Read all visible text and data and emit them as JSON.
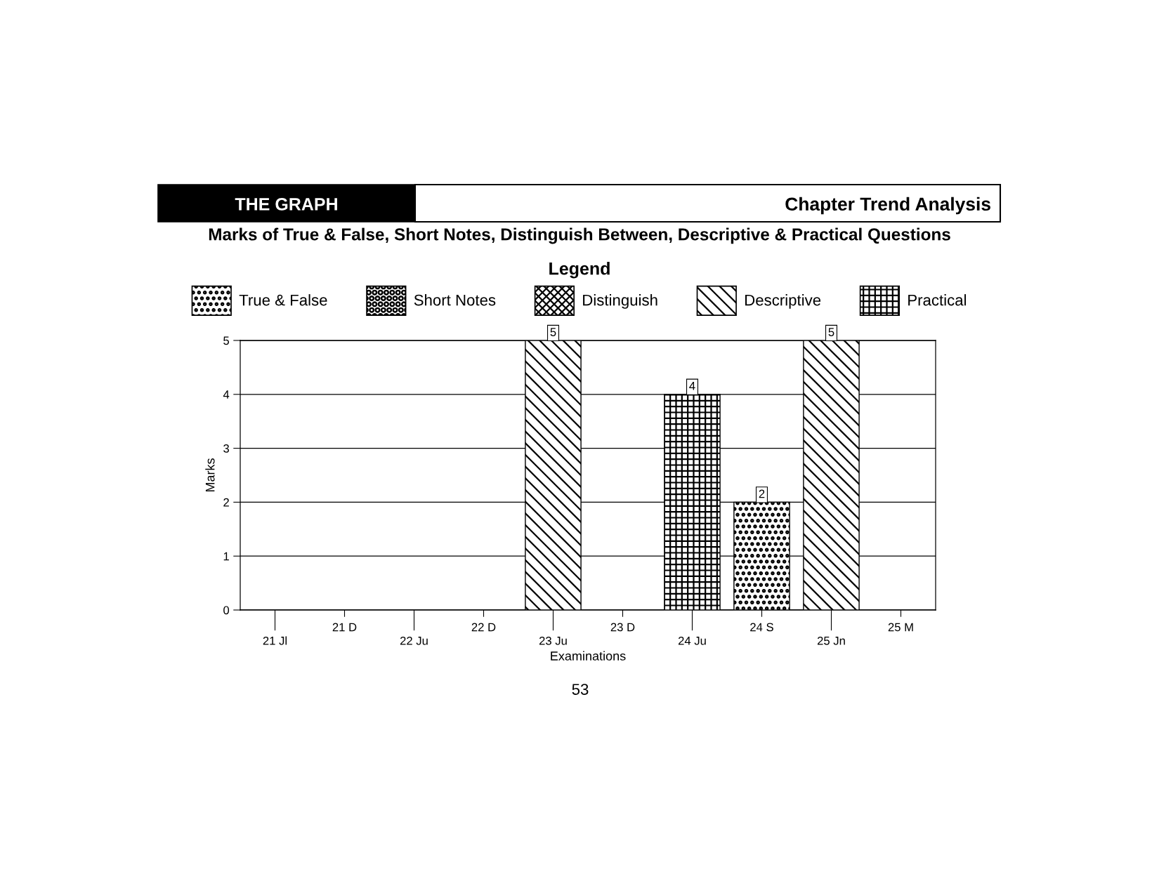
{
  "chart_data": {
    "type": "bar",
    "title": "Marks of True & False, Short Notes, Distinguish Between, Descriptive & Practical Questions",
    "xlabel": "Examinations",
    "ylabel": "Marks",
    "legend_title": "Legend",
    "annotations": [
      "THE GRAPH",
      "Chapter Trend Analysis",
      "53"
    ],
    "categories": [
      "21 Jl",
      "21 D",
      "22 Ju",
      "22 D",
      "23 Ju",
      "23 D",
      "24 Ju",
      "24 S",
      "25 Jn",
      "25 M"
    ],
    "series": [
      {
        "name": "True & False",
        "color": "#000000",
        "values": [
          null,
          null,
          null,
          null,
          null,
          null,
          null,
          2,
          null,
          null
        ]
      },
      {
        "name": "Short Notes",
        "color": "#000000",
        "values": [
          null,
          null,
          null,
          null,
          null,
          null,
          null,
          null,
          null,
          null
        ]
      },
      {
        "name": "Distinguish",
        "color": "#000000",
        "values": [
          null,
          null,
          null,
          null,
          null,
          null,
          null,
          null,
          null,
          null
        ]
      },
      {
        "name": "Descriptive",
        "color": "#000000",
        "values": [
          null,
          null,
          null,
          null,
          5,
          null,
          null,
          null,
          5,
          null
        ]
      },
      {
        "name": "Practical",
        "color": "#000000",
        "values": [
          null,
          null,
          null,
          null,
          null,
          null,
          4,
          null,
          null,
          null
        ]
      }
    ],
    "stacked": true,
    "ylim": [
      0,
      5
    ],
    "yticks": [
      0,
      1,
      2,
      3,
      4,
      5
    ],
    "grid": "y",
    "legend": "top",
    "data_labels": true
  }
}
